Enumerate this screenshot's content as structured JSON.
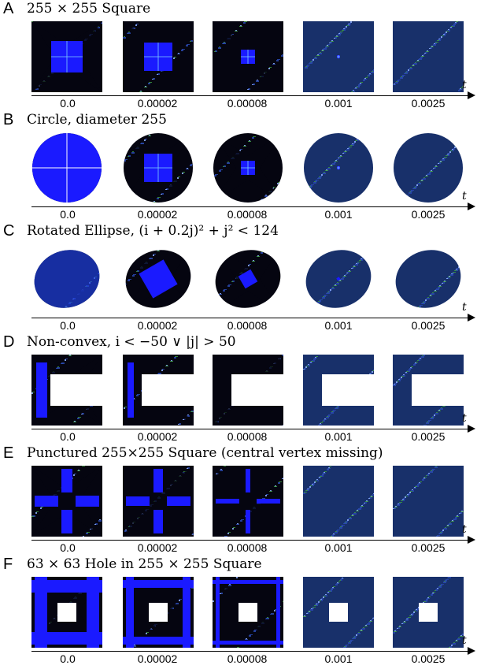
{
  "axis_symbol": "t",
  "time_labels": [
    "0.0",
    "0.00002",
    "0.00008",
    "0.001",
    "0.0025"
  ],
  "colors": {
    "background": "#ffffff",
    "blue": "#1a1aff",
    "green": "#3c9a3c",
    "dark": "#050510",
    "noise": "#2a4ab0"
  },
  "panels": [
    {
      "letter": "A",
      "title": "255 × 255 Square",
      "shape": "square"
    },
    {
      "letter": "B",
      "title": "Circle, diameter 255",
      "shape": "circle"
    },
    {
      "letter": "C",
      "title": "Rotated Ellipse, (i + 0.2j)² + j² < 124",
      "shape": "ellipse"
    },
    {
      "letter": "D",
      "title": "Non-convex, i < −50 ∨ |j| > 50",
      "shape": "nonconvex"
    },
    {
      "letter": "E",
      "title": "Punctured 255×255 Square (central vertex missing)",
      "shape": "punctured"
    },
    {
      "letter": "F",
      "title": "63 × 63 Hole in 255 × 255 Square",
      "shape": "hole"
    }
  ]
}
